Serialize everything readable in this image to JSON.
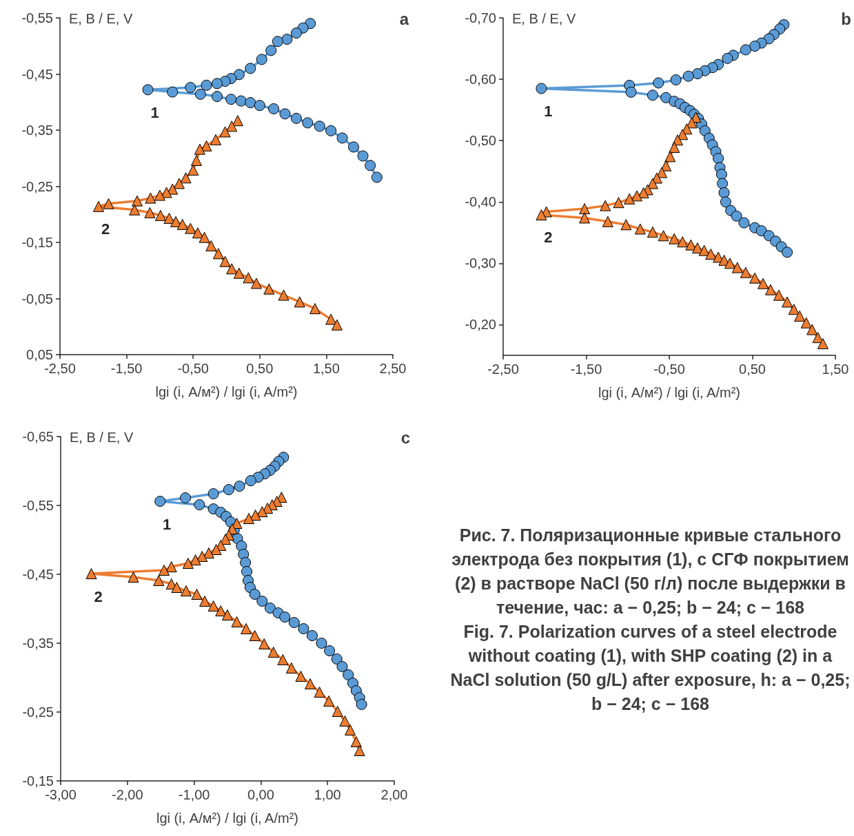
{
  "chart_data": [
    {
      "type": "line",
      "title": "a",
      "xlabel": "lgi (i, А/м²) / lgi (i, A/m²)",
      "ylabel": "E, В / E, V",
      "xlim": [
        -2.5,
        2.5
      ],
      "ylim": [
        0.05,
        -0.55
      ],
      "xticks": [
        {
          "value": -2.5,
          "label": "-2,50"
        },
        {
          "value": -1.5,
          "label": "-1,50"
        },
        {
          "value": -0.5,
          "label": "-0,50"
        },
        {
          "value": 0.5,
          "label": "0,50"
        },
        {
          "value": 1.5,
          "label": "1,50"
        },
        {
          "value": 2.5,
          "label": "2,50"
        }
      ],
      "yticks": [
        {
          "value": -0.55,
          "label": "-0,55"
        },
        {
          "value": -0.45,
          "label": "-0,45"
        },
        {
          "value": -0.35,
          "label": "-0,35"
        },
        {
          "value": -0.25,
          "label": "-0,25"
        },
        {
          "value": -0.15,
          "label": "-0,15"
        },
        {
          "value": -0.05,
          "label": "-0,05"
        },
        {
          "value": 0.05,
          "label": "0,05"
        }
      ],
      "series": [
        {
          "name": "1",
          "color": "#5b9bd5",
          "marker": "circle",
          "x": [
            1.26,
            1.15,
            1.05,
            0.91,
            0.77,
            0.67,
            0.53,
            0.36,
            0.19,
            0.07,
            -0.02,
            -0.14,
            -0.3,
            -0.54,
            -1.18,
            -0.81,
            -0.39,
            -0.14,
            0.07,
            0.22,
            0.36,
            0.5,
            0.71,
            0.88,
            1.05,
            1.22,
            1.4,
            1.57,
            1.74,
            1.91,
            2.05,
            2.16,
            2.26
          ],
          "values": [
            -0.54,
            -0.532,
            -0.523,
            -0.512,
            -0.508,
            -0.492,
            -0.476,
            -0.46,
            -0.449,
            -0.442,
            -0.437,
            -0.433,
            -0.43,
            -0.426,
            -0.422,
            -0.418,
            -0.414,
            -0.41,
            -0.405,
            -0.402,
            -0.399,
            -0.394,
            -0.388,
            -0.379,
            -0.371,
            -0.363,
            -0.357,
            -0.349,
            -0.336,
            -0.32,
            -0.304,
            -0.287,
            -0.266
          ]
        },
        {
          "name": "2",
          "color": "#ed7d31",
          "marker": "triangle",
          "x": [
            0.17,
            0.08,
            -0.02,
            -0.16,
            -0.3,
            -0.4,
            -0.45,
            -0.5,
            -0.61,
            -0.71,
            -0.81,
            -0.9,
            -1.0,
            -1.14,
            -1.34,
            -1.77,
            -1.92,
            -1.38,
            -1.15,
            -0.99,
            -0.86,
            -0.76,
            -0.66,
            -0.54,
            -0.43,
            -0.33,
            -0.23,
            -0.12,
            -0.02,
            0.08,
            0.19,
            0.33,
            0.45,
            0.64,
            0.86,
            1.1,
            1.33,
            1.57,
            1.66
          ],
          "values": [
            -0.367,
            -0.357,
            -0.347,
            -0.333,
            -0.322,
            -0.316,
            -0.296,
            -0.279,
            -0.265,
            -0.255,
            -0.245,
            -0.239,
            -0.234,
            -0.229,
            -0.224,
            -0.219,
            -0.214,
            -0.208,
            -0.203,
            -0.198,
            -0.193,
            -0.187,
            -0.182,
            -0.175,
            -0.167,
            -0.159,
            -0.144,
            -0.13,
            -0.116,
            -0.103,
            -0.095,
            -0.087,
            -0.077,
            -0.067,
            -0.056,
            -0.044,
            -0.032,
            -0.013,
            -0.003
          ]
        }
      ]
    },
    {
      "type": "line",
      "title": "b",
      "xlabel": "lgi (i, А/м²) / lgi (i, A/m²)",
      "ylabel": "E, В / E, V",
      "xlim": [
        -2.5,
        1.5
      ],
      "ylim": [
        -0.15,
        -0.7
      ],
      "xticks": [
        {
          "value": -2.5,
          "label": "-2,50"
        },
        {
          "value": -1.5,
          "label": "-1,50"
        },
        {
          "value": -0.5,
          "label": "-0,50"
        },
        {
          "value": 0.5,
          "label": "0,50"
        },
        {
          "value": 1.5,
          "label": "1,50"
        }
      ],
      "yticks": [
        {
          "value": -0.7,
          "label": "-0,70"
        },
        {
          "value": -0.6,
          "label": "-0,60"
        },
        {
          "value": -0.5,
          "label": "-0,50"
        },
        {
          "value": -0.4,
          "label": "-0,40"
        },
        {
          "value": -0.3,
          "label": "-0,30"
        },
        {
          "value": -0.2,
          "label": "-0,20"
        }
      ],
      "series": [
        {
          "name": "1",
          "color": "#5b9bd5",
          "marker": "circle",
          "x": [
            0.88,
            0.83,
            0.76,
            0.7,
            0.61,
            0.53,
            0.42,
            0.27,
            0.2,
            0.09,
            0.02,
            -0.07,
            -0.16,
            -0.27,
            -0.42,
            -0.63,
            -0.98,
            -2.04,
            -0.96,
            -0.7,
            -0.54,
            -0.44,
            -0.37,
            -0.31,
            -0.25,
            -0.2,
            -0.15,
            -0.11,
            -0.07,
            -0.02,
            0.02,
            0.06,
            0.09,
            0.11,
            0.13,
            0.14,
            0.16,
            0.18,
            0.24,
            0.31,
            0.4,
            0.53,
            0.61,
            0.7,
            0.78,
            0.85,
            0.92
          ],
          "values": [
            -0.689,
            -0.682,
            -0.673,
            -0.666,
            -0.659,
            -0.654,
            -0.648,
            -0.639,
            -0.634,
            -0.624,
            -0.619,
            -0.614,
            -0.609,
            -0.605,
            -0.599,
            -0.594,
            -0.59,
            -0.585,
            -0.579,
            -0.574,
            -0.57,
            -0.564,
            -0.56,
            -0.554,
            -0.549,
            -0.543,
            -0.536,
            -0.527,
            -0.516,
            -0.504,
            -0.493,
            -0.482,
            -0.471,
            -0.456,
            -0.445,
            -0.43,
            -0.415,
            -0.4,
            -0.386,
            -0.377,
            -0.366,
            -0.358,
            -0.353,
            -0.345,
            -0.336,
            -0.327,
            -0.318
          ]
        },
        {
          "name": "2",
          "color": "#ed7d31",
          "marker": "triangle",
          "x": [
            -0.18,
            -0.23,
            -0.29,
            -0.34,
            -0.4,
            -0.44,
            -0.49,
            -0.54,
            -0.59,
            -0.65,
            -0.7,
            -0.76,
            -0.81,
            -0.89,
            -0.98,
            -1.11,
            -1.27,
            -1.52,
            -1.98,
            -2.04,
            -1.52,
            -1.24,
            -1.02,
            -0.85,
            -0.7,
            -0.57,
            -0.44,
            -0.34,
            -0.24,
            -0.16,
            -0.08,
            0.0,
            0.09,
            0.16,
            0.23,
            0.32,
            0.42,
            0.53,
            0.63,
            0.72,
            0.82,
            0.92,
            1.0,
            1.07,
            1.15,
            1.22,
            1.29,
            1.35
          ],
          "values": [
            -0.538,
            -0.529,
            -0.519,
            -0.51,
            -0.501,
            -0.489,
            -0.474,
            -0.459,
            -0.448,
            -0.439,
            -0.43,
            -0.42,
            -0.415,
            -0.41,
            -0.405,
            -0.399,
            -0.394,
            -0.389,
            -0.384,
            -0.379,
            -0.374,
            -0.368,
            -0.363,
            -0.356,
            -0.351,
            -0.345,
            -0.34,
            -0.335,
            -0.33,
            -0.325,
            -0.321,
            -0.315,
            -0.31,
            -0.305,
            -0.3,
            -0.293,
            -0.285,
            -0.276,
            -0.267,
            -0.257,
            -0.248,
            -0.237,
            -0.225,
            -0.214,
            -0.203,
            -0.192,
            -0.179,
            -0.169
          ]
        }
      ]
    },
    {
      "type": "line",
      "title": "c",
      "xlabel": "lgi (i, А/м²) / lgi (i, A/m²)",
      "ylabel": "E, В / E, V",
      "xlim": [
        -3,
        2
      ],
      "ylim": [
        -0.15,
        -0.65
      ],
      "xticks": [
        {
          "value": -3,
          "label": "-3,00"
        },
        {
          "value": -2,
          "label": "-2,00"
        },
        {
          "value": -1,
          "label": "-1,00"
        },
        {
          "value": 0,
          "label": "0,00"
        },
        {
          "value": 1,
          "label": "1,00"
        },
        {
          "value": 2,
          "label": "2,00"
        }
      ],
      "yticks": [
        {
          "value": -0.65,
          "label": "-0,65"
        },
        {
          "value": -0.55,
          "label": "-0,55"
        },
        {
          "value": -0.45,
          "label": "-0,45"
        },
        {
          "value": -0.35,
          "label": "-0,35"
        },
        {
          "value": -0.25,
          "label": "-0,25"
        },
        {
          "value": -0.15,
          "label": "-0,15"
        }
      ],
      "series": [
        {
          "name": "1",
          "color": "#5b9bd5",
          "marker": "circle",
          "x": [
            0.34,
            0.27,
            0.21,
            0.14,
            0.06,
            -0.04,
            -0.15,
            -0.32,
            -0.48,
            -0.71,
            -1.13,
            -1.51,
            -0.92,
            -0.71,
            -0.6,
            -0.52,
            -0.45,
            -0.4,
            -0.35,
            -0.29,
            -0.26,
            -0.23,
            -0.21,
            -0.19,
            -0.16,
            -0.09,
            0.02,
            0.14,
            0.26,
            0.36,
            0.5,
            0.64,
            0.77,
            0.91,
            1.03,
            1.14,
            1.22,
            1.31,
            1.38,
            1.43,
            1.48,
            1.51
          ],
          "values": [
            -0.62,
            -0.614,
            -0.607,
            -0.601,
            -0.596,
            -0.591,
            -0.586,
            -0.578,
            -0.573,
            -0.567,
            -0.561,
            -0.556,
            -0.551,
            -0.545,
            -0.54,
            -0.534,
            -0.526,
            -0.514,
            -0.502,
            -0.491,
            -0.479,
            -0.467,
            -0.454,
            -0.441,
            -0.431,
            -0.421,
            -0.411,
            -0.401,
            -0.394,
            -0.388,
            -0.38,
            -0.371,
            -0.361,
            -0.35,
            -0.339,
            -0.327,
            -0.316,
            -0.304,
            -0.292,
            -0.281,
            -0.271,
            -0.261
          ]
        },
        {
          "name": "2",
          "color": "#ed7d31",
          "marker": "triangle",
          "x": [
            0.31,
            0.24,
            0.17,
            0.1,
            0.02,
            -0.08,
            -0.18,
            -0.36,
            -0.43,
            -0.48,
            -0.53,
            -0.6,
            -0.67,
            -0.78,
            -0.88,
            -0.98,
            -1.09,
            -1.34,
            -1.45,
            -2.54,
            -1.91,
            -1.53,
            -1.34,
            -1.26,
            -1.12,
            -0.96,
            -0.84,
            -0.71,
            -0.6,
            -0.5,
            -0.36,
            -0.22,
            -0.09,
            0.05,
            0.19,
            0.33,
            0.46,
            0.6,
            0.74,
            0.88,
            1.02,
            1.15,
            1.26,
            1.34,
            1.43,
            1.48
          ],
          "values": [
            -0.562,
            -0.556,
            -0.551,
            -0.546,
            -0.541,
            -0.536,
            -0.531,
            -0.524,
            -0.516,
            -0.507,
            -0.501,
            -0.492,
            -0.486,
            -0.481,
            -0.476,
            -0.471,
            -0.466,
            -0.461,
            -0.456,
            -0.451,
            -0.446,
            -0.441,
            -0.436,
            -0.431,
            -0.426,
            -0.421,
            -0.411,
            -0.404,
            -0.397,
            -0.391,
            -0.381,
            -0.371,
            -0.361,
            -0.349,
            -0.337,
            -0.326,
            -0.314,
            -0.302,
            -0.291,
            -0.279,
            -0.266,
            -0.251,
            -0.237,
            -0.224,
            -0.207,
            -0.194
          ]
        }
      ],
      "annotations": [
        "Рис. 7. Поляризационные кривые стального электрода без покрытия (1), с СГФ покрытием (2) в растворе NaCl (50 г/л) после выдержки в течение, час: a − 0,25; b − 24; c − 168",
        "Fig. 7. Polarization curves of a steel electrode without coating (1), with SHP coating (2) in a NaCl solution (50 g/L) after exposure, h: a − 0,25; b − 24; c − 168"
      ]
    }
  ]
}
